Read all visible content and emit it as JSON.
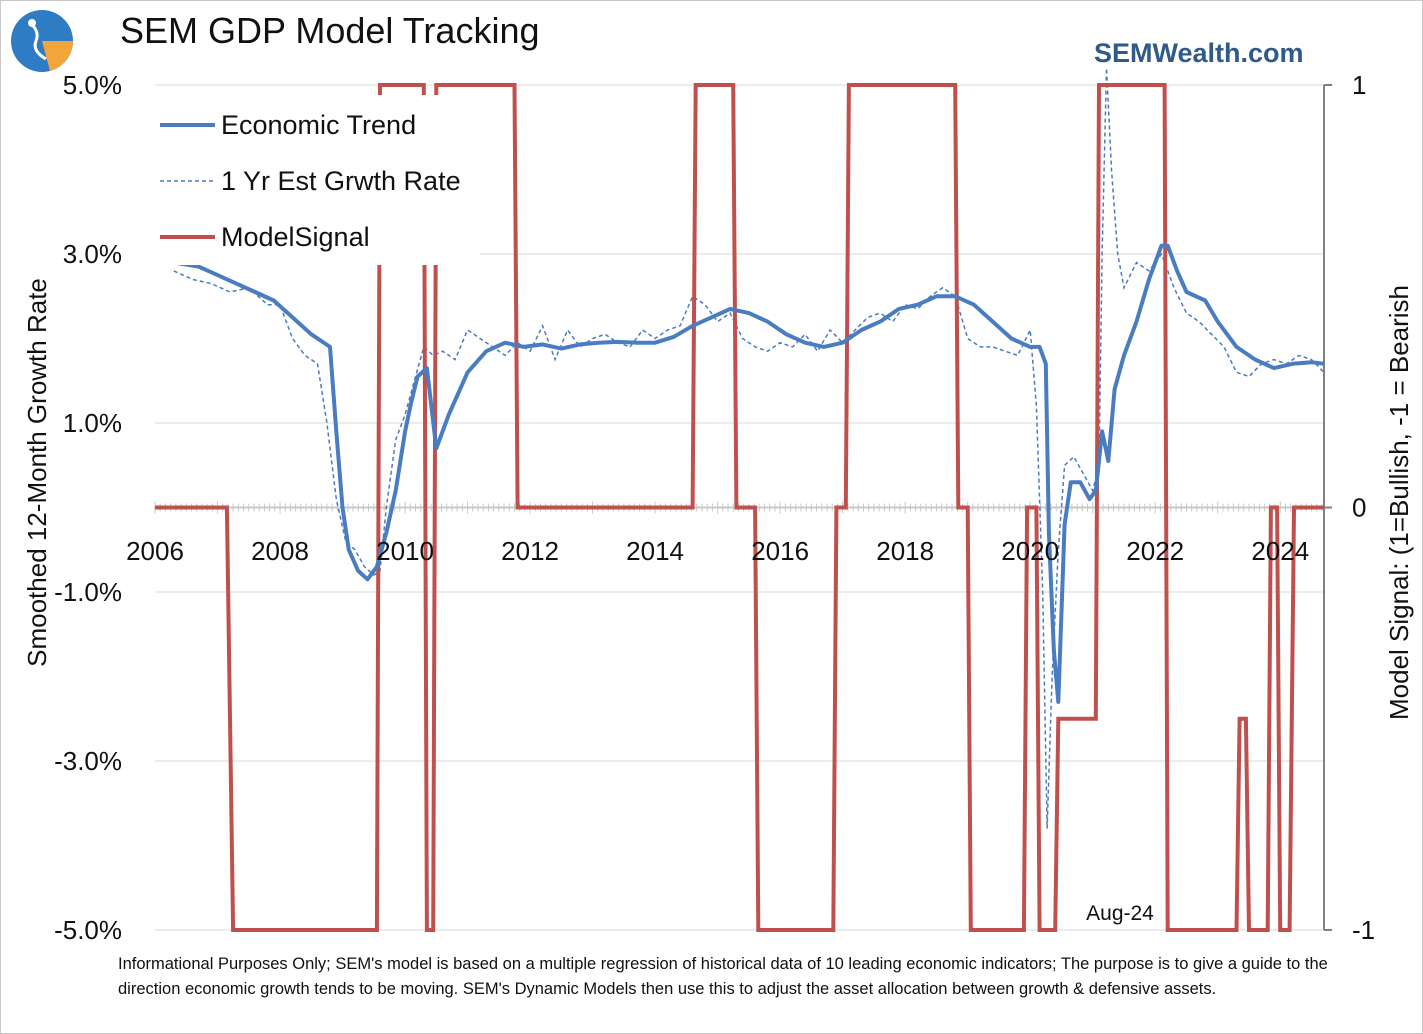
{
  "header": {
    "title": "SEM GDP Model Tracking",
    "brand": "SEMWealth.com",
    "logo_icon": "sem-logo-icon"
  },
  "chart_data": {
    "type": "line",
    "title": "SEM GDP Model Tracking",
    "ylabel": "Smoothed 12-Month Growth Rate",
    "y2label": "Model Signal: (1=Bullish, -1 = Bearish",
    "ylim": [
      -5.0,
      5.0
    ],
    "y2lim": [
      -1,
      1
    ],
    "xlim": [
      2006.0,
      2024.7
    ],
    "yticks": [
      "5.0%",
      "3.0%",
      "1.0%",
      "-1.0%",
      "-3.0%",
      "-5.0%"
    ],
    "ytick_values": [
      5,
      3,
      1,
      -1,
      -3,
      -5
    ],
    "y2ticks": [
      "1",
      "0",
      "-1"
    ],
    "y2tick_values": [
      1,
      0,
      -1
    ],
    "xticks": [
      "2006",
      "2008",
      "2010",
      "2012",
      "2014",
      "2016",
      "2018",
      "2020",
      "2022",
      "2024"
    ],
    "xtick_values": [
      2006,
      2008,
      2010,
      2012,
      2014,
      2016,
      2018,
      2020,
      2022,
      2024
    ],
    "annotation": "Aug-24",
    "legend": [
      "Economic Trend",
      "1 Yr Est Grwth Rate",
      "ModelSignal"
    ],
    "colors": {
      "trend": "#4a7cc0",
      "estimate": "#4a7cc0",
      "signal": "#c0504d",
      "axis": "#808080",
      "grid": "#d9d9d9"
    },
    "series": [
      {
        "name": "Economic Trend",
        "axis": "left",
        "x": [
          2006.3,
          2006.7,
          2007.0,
          2007.3,
          2007.6,
          2007.9,
          2008.2,
          2008.5,
          2008.8,
          2008.9,
          2009.0,
          2009.1,
          2009.25,
          2009.4,
          2009.55,
          2009.7,
          2009.85,
          2010.0,
          2010.1,
          2010.2,
          2010.35,
          2010.5,
          2010.7,
          2011.0,
          2011.3,
          2011.6,
          2011.9,
          2012.2,
          2012.5,
          2012.8,
          2013.1,
          2013.4,
          2013.7,
          2014.0,
          2014.3,
          2014.6,
          2014.9,
          2015.2,
          2015.5,
          2015.8,
          2016.1,
          2016.4,
          2016.7,
          2017.0,
          2017.3,
          2017.6,
          2017.9,
          2018.2,
          2018.5,
          2018.8,
          2019.1,
          2019.4,
          2019.7,
          2020.0,
          2020.15,
          2020.25,
          2020.3,
          2020.38,
          2020.45,
          2020.55,
          2020.65,
          2020.8,
          2020.95,
          2021.05,
          2021.15,
          2021.25,
          2021.35,
          2021.5,
          2021.7,
          2021.9,
          2022.1,
          2022.2,
          2022.35,
          2022.5,
          2022.8,
          2023.0,
          2023.3,
          2023.6,
          2023.9,
          2024.2,
          2024.5,
          2024.7
        ],
        "values": [
          2.9,
          2.85,
          2.75,
          2.65,
          2.55,
          2.45,
          2.25,
          2.05,
          1.9,
          0.9,
          0.0,
          -0.5,
          -0.75,
          -0.85,
          -0.7,
          -0.3,
          0.2,
          0.9,
          1.25,
          1.55,
          1.65,
          0.7,
          1.1,
          1.6,
          1.85,
          1.95,
          1.9,
          1.93,
          1.88,
          1.93,
          1.95,
          1.96,
          1.95,
          1.95,
          2.02,
          2.15,
          2.25,
          2.35,
          2.3,
          2.2,
          2.05,
          1.95,
          1.9,
          1.95,
          2.1,
          2.2,
          2.35,
          2.4,
          2.5,
          2.5,
          2.4,
          2.2,
          2.0,
          1.9,
          1.9,
          1.7,
          -0.3,
          -1.7,
          -2.3,
          -0.2,
          0.3,
          0.3,
          0.1,
          0.2,
          0.9,
          0.55,
          1.4,
          1.8,
          2.2,
          2.7,
          3.1,
          3.1,
          2.8,
          2.55,
          2.45,
          2.2,
          1.9,
          1.75,
          1.65,
          1.7,
          1.72,
          1.7
        ]
      },
      {
        "name": "1 Yr Est Grwth Rate",
        "axis": "left",
        "x": [
          2006.3,
          2006.6,
          2006.9,
          2007.2,
          2007.5,
          2007.8,
          2008.0,
          2008.2,
          2008.4,
          2008.6,
          2008.75,
          2008.9,
          2009.05,
          2009.2,
          2009.35,
          2009.5,
          2009.6,
          2009.7,
          2009.85,
          2010.0,
          2010.15,
          2010.3,
          2010.45,
          2010.6,
          2010.8,
          2011.0,
          2011.2,
          2011.4,
          2011.6,
          2011.8,
          2012.0,
          2012.2,
          2012.4,
          2012.6,
          2012.8,
          2013.0,
          2013.2,
          2013.4,
          2013.6,
          2013.8,
          2014.0,
          2014.2,
          2014.4,
          2014.6,
          2014.8,
          2015.0,
          2015.2,
          2015.4,
          2015.6,
          2015.8,
          2016.0,
          2016.2,
          2016.4,
          2016.6,
          2016.8,
          2017.0,
          2017.2,
          2017.4,
          2017.6,
          2017.8,
          2018.0,
          2018.2,
          2018.4,
          2018.6,
          2018.8,
          2019.0,
          2019.2,
          2019.4,
          2019.6,
          2019.8,
          2020.0,
          2020.1,
          2020.2,
          2020.27,
          2020.35,
          2020.45,
          2020.55,
          2020.7,
          2020.85,
          2021.0,
          2021.1,
          2021.15,
          2021.22,
          2021.3,
          2021.4,
          2021.5,
          2021.7,
          2021.9,
          2022.1,
          2022.3,
          2022.5,
          2022.7,
          2022.9,
          2023.1,
          2023.3,
          2023.5,
          2023.7,
          2023.9,
          2024.1,
          2024.3,
          2024.5,
          2024.7
        ],
        "values": [
          2.8,
          2.7,
          2.65,
          2.55,
          2.6,
          2.4,
          2.4,
          2.0,
          1.8,
          1.7,
          1.0,
          0.1,
          -0.4,
          -0.5,
          -0.7,
          -0.8,
          -0.75,
          0.0,
          0.8,
          1.1,
          1.5,
          1.9,
          1.8,
          1.85,
          1.75,
          2.1,
          2.0,
          1.9,
          1.8,
          1.95,
          1.85,
          2.15,
          1.75,
          2.1,
          1.9,
          2.0,
          2.05,
          1.95,
          1.9,
          2.1,
          2.0,
          2.1,
          2.15,
          2.5,
          2.4,
          2.2,
          2.3,
          2.0,
          1.9,
          1.85,
          1.95,
          1.9,
          2.05,
          1.85,
          2.1,
          1.95,
          2.1,
          2.25,
          2.3,
          2.2,
          2.4,
          2.35,
          2.5,
          2.6,
          2.5,
          2.0,
          1.9,
          1.9,
          1.85,
          1.8,
          2.1,
          1.2,
          -1.0,
          -3.8,
          -2.0,
          -0.5,
          0.5,
          0.6,
          0.4,
          0.2,
          0.5,
          3.0,
          5.2,
          4.0,
          3.0,
          2.6,
          2.9,
          2.8,
          3.0,
          2.6,
          2.3,
          2.2,
          2.05,
          1.9,
          1.6,
          1.55,
          1.7,
          1.75,
          1.7,
          1.8,
          1.75,
          1.6
        ]
      },
      {
        "name": "ModelSignal",
        "axis": "right",
        "x": [
          2006.0,
          2007.15,
          2007.25,
          2009.55,
          2009.6,
          2010.3,
          2010.35,
          2010.45,
          2010.5,
          2010.6,
          2010.65,
          2011.75,
          2011.8,
          2014.6,
          2014.65,
          2015.25,
          2015.3,
          2015.6,
          2015.65,
          2016.85,
          2016.9,
          2017.05,
          2017.1,
          2018.8,
          2018.85,
          2019.0,
          2019.05,
          2019.9,
          2019.95,
          2020.1,
          2020.15,
          2020.4,
          2020.45,
          2020.55,
          2020.6,
          2021.05,
          2021.1,
          2021.25,
          2021.3,
          2021.95,
          2022.0,
          2022.15,
          2022.2,
          2023.3,
          2023.35,
          2023.45,
          2023.5,
          2023.8,
          2023.85,
          2023.95,
          2024.0,
          2024.15,
          2024.22,
          2024.3,
          2024.4,
          2024.7
        ],
        "values": [
          0,
          0,
          -1,
          -1,
          1,
          1,
          -1,
          -1,
          1,
          1,
          1,
          1,
          0,
          0,
          1,
          1,
          0,
          0,
          -1,
          -1,
          0,
          0,
          1,
          1,
          0,
          0,
          -1,
          -1,
          0,
          0,
          -1,
          -1,
          -0.5,
          -0.5,
          -0.5,
          -0.5,
          1,
          1,
          1,
          1,
          1,
          1,
          -1,
          -1,
          -0.5,
          -0.5,
          -1,
          -1,
          0,
          0,
          -1,
          -1,
          0,
          0,
          0,
          0
        ]
      }
    ]
  },
  "footnote": "Informational Purposes Only; SEM's model is based on a multiple regression of historical data of 10 leading economic indicators; The purpose is to give a guide to the direction economic growth tends to be moving. SEM's Dynamic Models then use this to adjust the asset allocation between growth & defensive assets."
}
